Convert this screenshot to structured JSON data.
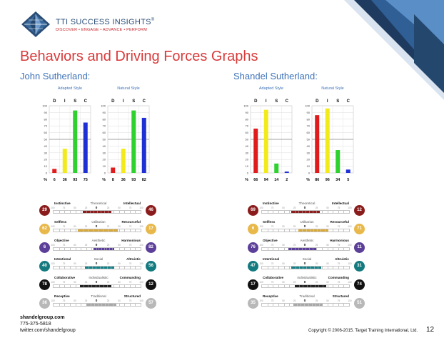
{
  "brand": {
    "title": "TTI SUCCESS INSIGHTS",
    "trademark": "®",
    "tagline": "DISCOVER • ENGAGE • ADVANCE • PERFORM",
    "colors": {
      "blue": "#2a4d77",
      "red": "#c8262c",
      "corner_dark": "#1e3a5f",
      "corner_light": "#5a8ec6"
    }
  },
  "page_title": "Behaviors and Driving Forces Graphs",
  "people": [
    {
      "name": "John Sutherland:",
      "disc_charts": [
        {
          "title": "Adapted Style",
          "values": [
            6,
            36,
            93,
            75
          ]
        },
        {
          "title": "Natural Style",
          "values": [
            8,
            36,
            93,
            82
          ]
        }
      ],
      "driving_forces": [
        {
          "left_value": 29,
          "right_value": 46,
          "left_label": "Instinctive",
          "mid_label": "Theoretical",
          "right_label": "Intellectual",
          "left_color": "#8b1c1c",
          "right_color": "#8b1c1c",
          "bar_color": "#8b1c1c",
          "bar_range": [
            34,
            66
          ]
        },
        {
          "left_value": 62,
          "right_value": 17,
          "left_label": "Selfless",
          "mid_label": "Utilitarian",
          "right_label": "Resourceful",
          "left_color": "#e8b84a",
          "right_color": "#e8b84a",
          "bar_color": "#d8a838",
          "bar_range": [
            28,
            74
          ]
        },
        {
          "left_value": 6,
          "right_value": 82,
          "left_label": "Objective",
          "mid_label": "Aesthetic",
          "right_label": "Harmonious",
          "left_color": "#5b3f98",
          "right_color": "#5b3f98",
          "bar_color": "#5b3f98",
          "bar_range": [
            46,
            70
          ]
        },
        {
          "left_value": 40,
          "right_value": 56,
          "left_label": "Intentional",
          "mid_label": "Social",
          "right_label": "Altruistic",
          "left_color": "#137a7f",
          "right_color": "#137a7f",
          "bar_color": "#147f86",
          "bar_range": [
            36,
            70
          ]
        },
        {
          "left_value": 78,
          "right_value": 12,
          "left_label": "Collaborative",
          "mid_label": "Individualistic",
          "right_label": "Commanding",
          "left_color": "#111111",
          "right_color": "#111111",
          "bar_color": "#222222",
          "bar_range": [
            30,
            66
          ]
        },
        {
          "left_value": 36,
          "right_value": 57,
          "left_label": "Receptive",
          "mid_label": "Traditional",
          "right_label": "Structured",
          "left_color": "#b8b8b8",
          "right_color": "#b8b8b8",
          "bar_color": "#a8a8a8",
          "bar_range": [
            38,
            72
          ]
        }
      ]
    },
    {
      "name": "Shandel Sutherland:",
      "disc_charts": [
        {
          "title": "Adapted Style",
          "values": [
            66,
            94,
            14,
            2
          ]
        },
        {
          "title": "Natural Style",
          "values": [
            86,
            96,
            34,
            5
          ]
        }
      ],
      "driving_forces": [
        {
          "left_value": 69,
          "right_value": 12,
          "left_label": "Instinctive",
          "mid_label": "Theoretical",
          "right_label": "Intellectual",
          "left_color": "#8b1c1c",
          "right_color": "#8b1c1c",
          "bar_color": "#8b1c1c",
          "bar_range": [
            34,
            66
          ]
        },
        {
          "left_value": 6,
          "right_value": 71,
          "left_label": "Selfless",
          "mid_label": "Utilitarian",
          "right_label": "Resourceful",
          "left_color": "#e8b84a",
          "right_color": "#e8b84a",
          "bar_color": "#d8a838",
          "bar_range": [
            42,
            76
          ]
        },
        {
          "left_value": 76,
          "right_value": 11,
          "left_label": "Objective",
          "mid_label": "Aesthetic",
          "right_label": "Harmonious",
          "left_color": "#5b3f98",
          "right_color": "#5b3f98",
          "bar_color": "#5b3f98",
          "bar_range": [
            30,
            62
          ]
        },
        {
          "left_value": 47,
          "right_value": 31,
          "left_label": "Intentional",
          "mid_label": "Social",
          "right_label": "Altruistic",
          "left_color": "#137a7f",
          "right_color": "#137a7f",
          "bar_color": "#147f86",
          "bar_range": [
            34,
            68
          ]
        },
        {
          "left_value": 17,
          "right_value": 74,
          "left_label": "Collaborative",
          "mid_label": "Individualistic",
          "right_label": "Commanding",
          "left_color": "#111111",
          "right_color": "#111111",
          "bar_color": "#222222",
          "bar_range": [
            38,
            74
          ]
        },
        {
          "left_value": 35,
          "right_value": 51,
          "left_label": "Receptive",
          "mid_label": "Traditional",
          "right_label": "Structured",
          "left_color": "#b8b8b8",
          "right_color": "#b8b8b8",
          "bar_color": "#a8a8a8",
          "bar_range": [
            36,
            70
          ]
        }
      ]
    }
  ],
  "chart_data": [
    {
      "type": "bar",
      "title": "Adapted Style",
      "categories": [
        "D",
        "I",
        "S",
        "C"
      ],
      "values": [
        6,
        36,
        93,
        75
      ],
      "ylim": [
        0,
        100
      ],
      "colors": [
        "#e01b1b",
        "#f2ea1b",
        "#2ed12e",
        "#1f2fd6"
      ],
      "grid": true
    },
    {
      "type": "bar",
      "title": "Natural Style",
      "categories": [
        "D",
        "I",
        "S",
        "C"
      ],
      "values": [
        8,
        36,
        93,
        82
      ],
      "ylim": [
        0,
        100
      ],
      "colors": [
        "#e01b1b",
        "#f2ea1b",
        "#2ed12e",
        "#1f2fd6"
      ],
      "grid": true
    },
    {
      "type": "bar",
      "title": "Adapted Style",
      "categories": [
        "D",
        "I",
        "S",
        "C"
      ],
      "values": [
        66,
        94,
        14,
        2
      ],
      "ylim": [
        0,
        100
      ],
      "colors": [
        "#e01b1b",
        "#f2ea1b",
        "#2ed12e",
        "#1f2fd6"
      ],
      "grid": true
    },
    {
      "type": "bar",
      "title": "Natural Style",
      "categories": [
        "D",
        "I",
        "S",
        "C"
      ],
      "values": [
        86,
        96,
        34,
        5
      ],
      "ylim": [
        0,
        100
      ],
      "colors": [
        "#e01b1b",
        "#f2ea1b",
        "#2ed12e",
        "#1f2fd6"
      ],
      "grid": true
    }
  ],
  "disc_common": {
    "letters": [
      "D",
      "I",
      "S",
      "C"
    ],
    "percent_label": "%",
    "y_ticks": [
      "100",
      "90",
      "80",
      "70",
      "60",
      "50",
      "40",
      "30",
      "20",
      "10",
      "0"
    ],
    "midline": 50,
    "colors": [
      "#e01b1b",
      "#f2ea1b",
      "#2ed12e",
      "#1f2fd6"
    ]
  },
  "df_scale_labels": [
    "100",
    "75",
    "50",
    "25",
    "0",
    "25",
    "50",
    "75",
    "100"
  ],
  "df_zero_label": "0",
  "footer": {
    "site": "shandelgroup.com",
    "phone": "775-375-5818",
    "twitter": "twitter.com/shandelgroup",
    "copyright": "Copyright © 2006-2015. Target Training International, Ltd.",
    "page_number": "12"
  }
}
